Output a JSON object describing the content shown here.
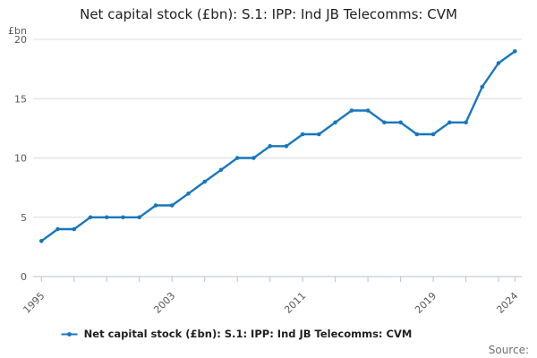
{
  "header": {
    "title": "Net capital stock (£bn): S.1: IPP: Ind JB Telecomms: CVM"
  },
  "chart_data": {
    "type": "line",
    "title": "Net capital stock (£bn): S.1: IPP: Ind JB Telecomms: CVM",
    "unit_label": "£bn",
    "xlabel": "",
    "ylabel": "£bn",
    "x": [
      1995,
      1996,
      1997,
      1998,
      1999,
      2000,
      2001,
      2002,
      2003,
      2004,
      2005,
      2006,
      2007,
      2008,
      2009,
      2010,
      2011,
      2012,
      2013,
      2014,
      2015,
      2016,
      2017,
      2018,
      2019,
      2020,
      2021,
      2022,
      2023,
      2024
    ],
    "series": [
      {
        "name": "Net capital stock (£bn): S.1: IPP: Ind JB Telecomms: CVM",
        "values": [
          3,
          4,
          4,
          5,
          5,
          5,
          5,
          6,
          6,
          7,
          8,
          9,
          10,
          10,
          11,
          11,
          12,
          12,
          13,
          14,
          14,
          13,
          13,
          12,
          12,
          13,
          13,
          16,
          18,
          19
        ]
      }
    ],
    "ylim": [
      0,
      20
    ],
    "yticks": [
      0,
      5,
      10,
      15,
      20
    ],
    "xticks": [
      1995,
      1997,
      1999,
      2001,
      2003,
      2005,
      2007,
      2009,
      2011,
      2013,
      2015,
      2017,
      2019,
      2021,
      2023,
      2024
    ],
    "xtick_labels": [
      "1995",
      "2003",
      "2011",
      "2019",
      "2024"
    ],
    "grid": true,
    "legend_position": "bottom",
    "marker": "dot"
  },
  "legend": {
    "label": "Net capital stock (£bn): S.1: IPP: Ind JB Telecomms: CVM"
  },
  "footer": {
    "source_label": "Source:"
  },
  "colors": {
    "line": "#1777bd",
    "grid": "#dcdcdc",
    "axis": "#b3c2d8",
    "tick_text": "#595959",
    "title_text": "#1f1f1f",
    "source_text": "#6f6f6f"
  }
}
